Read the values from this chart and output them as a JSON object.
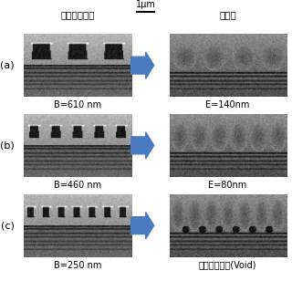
{
  "title_left": "パターン断面",
  "title_right": "堆積後",
  "scale_label": "1μm",
  "row_labels": [
    "(a)",
    "(b)",
    "(c)"
  ],
  "bottom_labels_left": [
    "B=610 nm",
    "B=460 nm",
    "B=250 nm"
  ],
  "bottom_labels_right": [
    "E=140nm",
    "E=80nm",
    "ギャップ無し(Void)"
  ],
  "arrow_color": "#4a7abf",
  "text_color": "#000000",
  "figsize": [
    3.2,
    3.08
  ],
  "dpi": 100
}
